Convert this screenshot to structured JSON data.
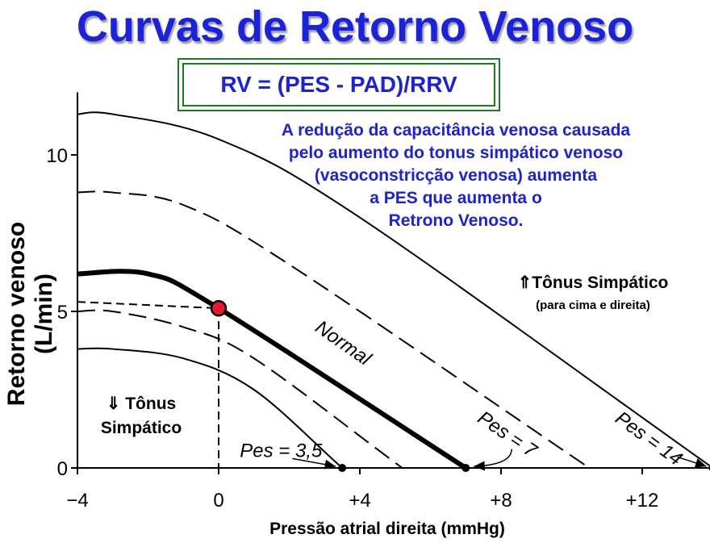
{
  "title": "Curvas de Retorno Venoso",
  "formula": "RV  = (PES - PAD)/RRV",
  "note_lines": [
    "A redução da capacitância venosa causada",
    "pelo aumento do tonus simpático venoso",
    "(vasoconstricção venosa) aumenta",
    "a PES que aumenta o",
    "Retrono Venoso."
  ],
  "up_label": "⇑Tônus Simpático",
  "up_sublabel": "(para cima e direita)",
  "down_label_lines": [
    "⇓ Tônus",
    "Simpático"
  ],
  "colors": {
    "title": "#1a22e0",
    "box_border": "#1d7a23",
    "marker": "#e8192c"
  },
  "chart_data": {
    "type": "line",
    "xlabel": "Pressão atrial direita (mmHg)",
    "ylabel": "Retorno venoso  (L/min)",
    "x_ticks": [
      {
        "value": -4,
        "label": "−4"
      },
      {
        "value": 0,
        "label": "0"
      },
      {
        "value": 4,
        "label": "+4"
      },
      {
        "value": 8,
        "label": "+8"
      },
      {
        "value": 12,
        "label": "+12"
      }
    ],
    "y_ticks": [
      {
        "value": 0,
        "label": "0"
      },
      {
        "value": 5,
        "label": "5"
      },
      {
        "value": 10,
        "label": "10"
      }
    ],
    "xlim": [
      -4,
      14
    ],
    "ylim": [
      0,
      11.5
    ],
    "series": [
      {
        "name": "Pes = 3,5",
        "style": "solid-thin",
        "points": [
          [
            -4,
            3.8
          ],
          [
            -3,
            3.8
          ],
          [
            -1,
            3.5
          ],
          [
            1,
            2.5
          ],
          [
            3.5,
            0
          ]
        ]
      },
      {
        "name": "",
        "style": "dashed",
        "points": [
          [
            -4,
            5.0
          ],
          [
            -3,
            5.0
          ],
          [
            -1,
            4.5
          ],
          [
            1,
            3.5
          ],
          [
            5.2,
            0
          ]
        ]
      },
      {
        "name": "Pes = 7",
        "style": "solid-thick",
        "points": [
          [
            -4,
            6.2
          ],
          [
            -2,
            6.2
          ],
          [
            0,
            5.1
          ],
          [
            7,
            0
          ]
        ]
      },
      {
        "name": "",
        "style": "dashed",
        "points": [
          [
            -4,
            8.8
          ],
          [
            -3,
            8.8
          ],
          [
            -1,
            8.4
          ],
          [
            2,
            6.5
          ],
          [
            10.5,
            0
          ]
        ]
      },
      {
        "name": "Pes = 14",
        "style": "solid-thin",
        "points": [
          [
            -4,
            11.3
          ],
          [
            -3,
            11.3
          ],
          [
            0,
            10.5
          ],
          [
            4,
            8.0
          ],
          [
            14,
            0
          ]
        ]
      }
    ],
    "curve_labels": [
      {
        "text": "Normal",
        "x": 2.7,
        "y": 4.4,
        "angle": 35
      },
      {
        "text": "Pes = 7",
        "x": 7.3,
        "y": 1.5,
        "angle": 34
      },
      {
        "text": "Pes = 14",
        "x": 11.2,
        "y": 1.5,
        "angle": 36
      },
      {
        "text": "Pes = 3,5",
        "x": 0.6,
        "y": 0.35,
        "angle": 0
      }
    ],
    "operating_point": {
      "x": 0,
      "y": 5.1
    },
    "grid": false
  }
}
